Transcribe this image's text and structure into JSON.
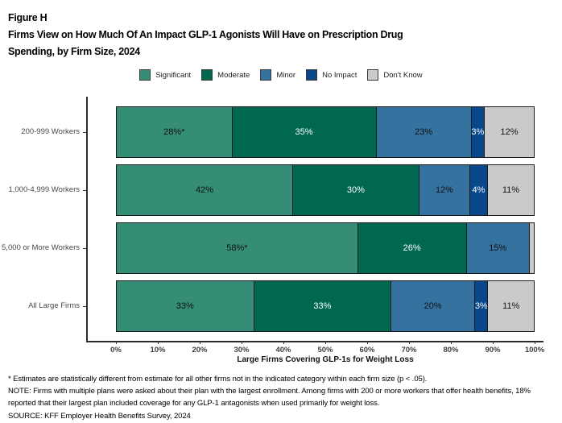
{
  "figure_label": "Figure H",
  "title_lines": [
    "Firms View on How Much Of An Impact GLP-1 Agonists Will Have on Prescription Drug",
    "Spending, by Firm Size, 2024"
  ],
  "chart_data": {
    "type": "bar",
    "orientation": "horizontal",
    "stacked": true,
    "title": "Firms View on How Much Of An Impact GLP-1 Agonists Will Have on Prescription Drug Spending, by Firm Size, 2024",
    "categories": [
      "200-999 Workers",
      "1,000-4,999 Workers",
      "5,000 or More Workers",
      "All Large Firms"
    ],
    "series": [
      {
        "name": "Significant",
        "color": "#358D76",
        "label_color": "#111111",
        "values": [
          28,
          42,
          58,
          33
        ],
        "labels": [
          "28%*",
          "42%",
          "58%*",
          "33%"
        ]
      },
      {
        "name": "Moderate",
        "color": "#00684F",
        "label_color": "#FFFFFF",
        "values": [
          35,
          30,
          26,
          33
        ],
        "labels": [
          "35%",
          "30%",
          "26%",
          "33%"
        ]
      },
      {
        "name": "Minor",
        "color": "#36729F",
        "label_color": "#111111",
        "values": [
          23,
          12,
          15,
          20
        ],
        "labels": [
          "23%",
          "12%",
          "15%",
          "20%"
        ]
      },
      {
        "name": "No Impact",
        "color": "#08488A",
        "label_color": "#FFFFFF",
        "values": [
          3,
          4,
          0,
          3
        ],
        "labels": [
          "3%",
          "4%",
          "",
          "3%"
        ]
      },
      {
        "name": "Don't Know",
        "color": "#CACACA",
        "label_color": "#111111",
        "values": [
          12,
          11,
          1,
          11
        ],
        "labels": [
          "12%",
          "11%",
          "",
          "11%"
        ]
      }
    ],
    "xlabel": "Large Firms Covering GLP-1s for Weight Loss",
    "ylabel": "",
    "xlim": [
      0,
      100
    ],
    "x_ticks": [
      "0%",
      "10%",
      "20%",
      "30%",
      "40%",
      "50%",
      "60%",
      "70%",
      "80%",
      "90%",
      "100%"
    ],
    "legend_position": "top",
    "grid": false
  },
  "notes": {
    "asterisk": "* Estimates are statistically different from estimate for all other firms not in the indicated category within each firm size (p < .05).",
    "note": "NOTE: Firms with multiple plans were asked about their plan with the largest enrollment.  Among firms with 200 or more workers that offer health benefits, 18% reported that their largest plan included coverage for any GLP-1 antagonists when used primarily for weight loss.",
    "source": "SOURCE: KFF Employer Health Benefits Survey, 2024"
  }
}
